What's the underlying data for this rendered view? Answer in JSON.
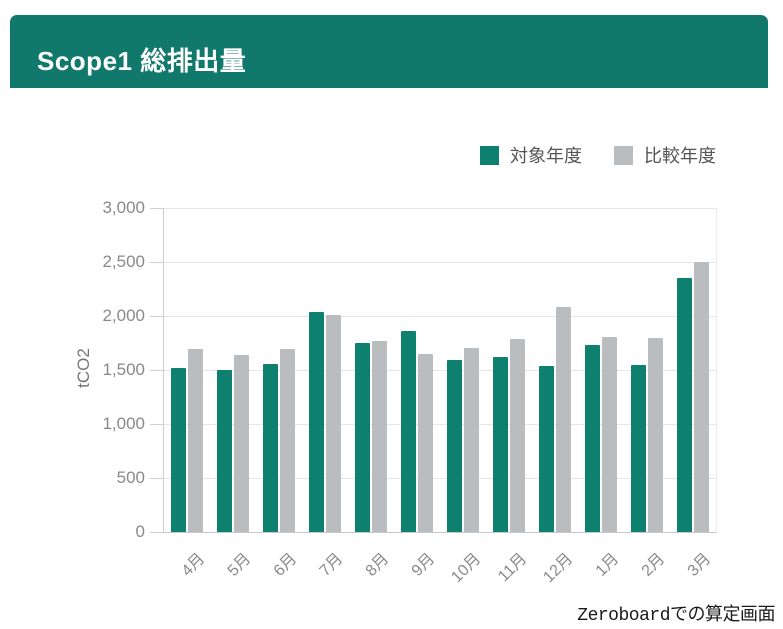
{
  "header": {
    "title": "Scope1 総排出量"
  },
  "legend": {
    "items": [
      {
        "label": "対象年度",
        "color": "#0e8070"
      },
      {
        "label": "比較年度",
        "color": "#b9bdbf"
      }
    ]
  },
  "caption": {
    "text": "Zeroboardでの算定画面"
  },
  "chart_data": {
    "type": "bar",
    "title": "Scope1 総排出量",
    "xlabel": "",
    "ylabel": "tCO2",
    "ylim": [
      0,
      3000
    ],
    "ytick_step": 500,
    "grid": "horizontal",
    "legend_position": "top-right",
    "categories": [
      "4月",
      "5月",
      "6月",
      "7月",
      "8月",
      "9月",
      "10月",
      "11月",
      "12月",
      "1月",
      "2月",
      "3月"
    ],
    "series": [
      {
        "name": "対象年度",
        "color": "#0e8070",
        "values": [
          1520,
          1500,
          1560,
          2040,
          1750,
          1860,
          1590,
          1620,
          1540,
          1730,
          1550,
          2350
        ]
      },
      {
        "name": "比較年度",
        "color": "#b9bdbf",
        "values": [
          1690,
          1640,
          1690,
          2010,
          1770,
          1650,
          1700,
          1790,
          2080,
          1810,
          1800,
          2500
        ]
      }
    ]
  },
  "colors": {
    "header_bg": "#11796b",
    "axis": "#cfcfcf",
    "gridline": "#e6e6e6",
    "tick_text": "#8a8a8a",
    "legend_text": "#555555"
  }
}
